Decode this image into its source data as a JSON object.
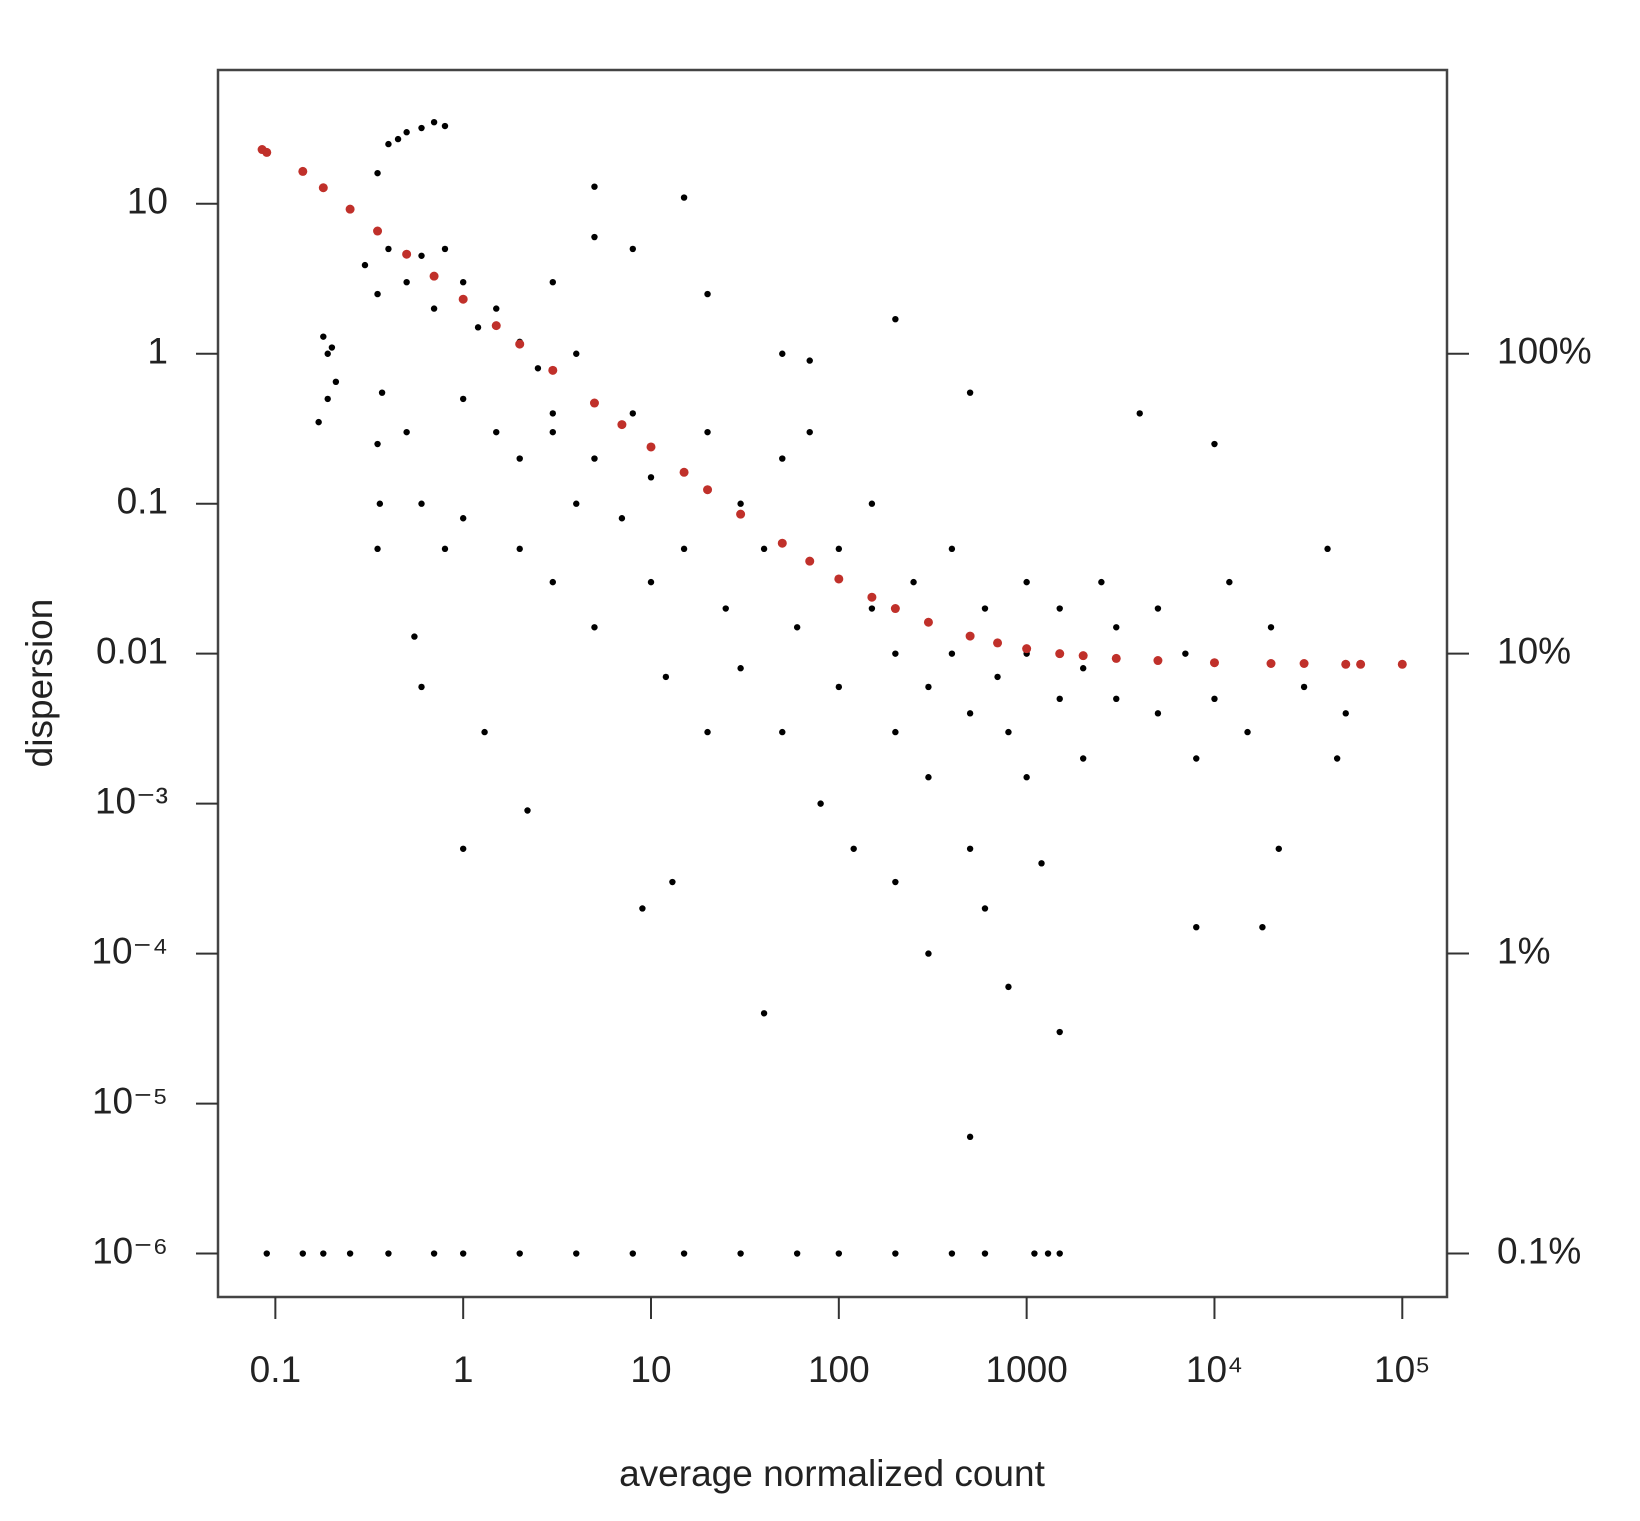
{
  "chart_data": {
    "type": "scatter",
    "xlabel": "average normalized count",
    "ylabel": "dispersion",
    "xlog": true,
    "ylog": true,
    "y2log": true,
    "xlim": [
      0.0495,
      173000
    ],
    "ylim": [
      5.13e-07,
      78
    ],
    "y2lim": [
      0.0716,
      883
    ],
    "xticks": [
      0.1,
      1,
      10,
      100,
      1000,
      {
        "value": 10000,
        "label": "10⁴"
      },
      {
        "value": 100000,
        "label": "10⁵"
      }
    ],
    "yticks": [
      {
        "value": 1e-06,
        "label": "10⁻⁶"
      },
      {
        "value": 1e-05,
        "label": "10⁻⁵"
      },
      {
        "value": 0.0001,
        "label": "10⁻⁴"
      },
      {
        "value": 0.001,
        "label": "10⁻³"
      },
      0.01,
      0.1,
      1,
      10
    ],
    "y2ticks": [
      {
        "value": 0.1,
        "label": "0.1%"
      },
      {
        "value": 1,
        "label": "1%"
      },
      {
        "value": 10,
        "label": "10%"
      },
      {
        "value": 100,
        "label": "100%"
      }
    ],
    "series": [
      {
        "color": "#000000",
        "x": [
          0.4,
          0.45,
          0.5,
          0.6,
          0.7,
          0.8,
          0.35,
          0.18,
          0.19,
          0.17,
          0.19,
          0.2,
          0.21,
          0.35,
          0.36,
          0.35,
          0.37,
          0.3,
          0.35,
          0.4,
          0.5,
          0.6,
          0.7,
          0.8,
          1,
          1.2,
          1.5,
          2,
          2.5,
          3,
          5,
          5,
          8,
          15,
          20,
          50,
          200,
          70,
          500,
          0.5,
          0.6,
          0.8,
          1,
          1,
          1.5,
          2,
          2,
          3,
          3,
          4,
          5,
          5,
          7,
          8,
          10,
          10,
          12,
          15,
          20,
          20,
          25,
          30,
          30,
          40,
          50,
          50,
          60,
          70,
          80,
          100,
          100,
          120,
          150,
          150,
          200,
          200,
          200,
          250,
          300,
          300,
          300,
          400,
          400,
          500,
          500,
          600,
          600,
          700,
          800,
          800,
          1000,
          1000,
          1000,
          1200,
          1500,
          1500,
          1500,
          2000,
          2000,
          2500,
          3000,
          3000,
          4000,
          5000,
          5000,
          7000,
          8000,
          10000,
          10000,
          12000,
          15000,
          20000,
          22000,
          30000,
          40000,
          45000,
          50000,
          18000,
          8000,
          500,
          40,
          1,
          0.6,
          0.55,
          1.3,
          2.2,
          9,
          13,
          3,
          4,
          0.09,
          0.14,
          0.18,
          0.25,
          0.4,
          0.7,
          1,
          2,
          4,
          8,
          15,
          30,
          60,
          100,
          200,
          400,
          600,
          1100,
          1300,
          1500
        ],
        "values": [
          25,
          27,
          30,
          32,
          35,
          33,
          16,
          1.3,
          1.0,
          0.35,
          0.5,
          1.1,
          0.65,
          0.25,
          0.1,
          0.05,
          0.55,
          3.9,
          2.5,
          5,
          3,
          4.5,
          2,
          5,
          3,
          1.5,
          2,
          1.2,
          0.8,
          3,
          13,
          6,
          5,
          11,
          2.5,
          1,
          1.7,
          0.9,
          0.55,
          0.3,
          0.1,
          0.05,
          0.5,
          0.08,
          0.3,
          0.05,
          0.2,
          0.4,
          0.03,
          0.1,
          0.2,
          0.015,
          0.08,
          0.4,
          0.03,
          0.15,
          0.007,
          0.05,
          0.3,
          0.003,
          0.02,
          0.1,
          0.008,
          0.05,
          0.003,
          0.2,
          0.015,
          0.3,
          0.001,
          0.05,
          0.006,
          0.0005,
          0.02,
          0.1,
          0.003,
          0.01,
          0.0003,
          0.03,
          0.006,
          0.0015,
          0.0001,
          0.01,
          0.05,
          0.004,
          0.0005,
          0.02,
          0.0002,
          0.007,
          0.003,
          6e-05,
          0.01,
          0.03,
          0.0015,
          0.0004,
          0.005,
          0.02,
          3e-05,
          0.008,
          0.002,
          0.03,
          0.005,
          0.015,
          0.4,
          0.004,
          0.02,
          0.01,
          0.002,
          0.25,
          0.005,
          0.03,
          0.003,
          0.015,
          0.0005,
          0.006,
          0.05,
          0.002,
          0.004,
          0.00015,
          0.00015,
          6e-06,
          4e-05,
          0.0005,
          0.006,
          0.013,
          0.003,
          0.0009,
          0.0002,
          0.0003,
          0.3,
          1,
          1e-06,
          1e-06,
          1e-06,
          1e-06,
          1e-06,
          1e-06,
          1e-06,
          1e-06,
          1e-06,
          1e-06,
          1e-06,
          1e-06,
          1e-06,
          1e-06,
          1e-06,
          1e-06,
          1e-06,
          1e-06,
          1e-06,
          1e-06
        ]
      },
      {
        "color": "#c0302a",
        "x": [
          0.085,
          0.09,
          0.14,
          0.18,
          0.25,
          0.35,
          0.5,
          0.7,
          1,
          1.5,
          2,
          3,
          5,
          7,
          10,
          15,
          20,
          30,
          50,
          70,
          100,
          150,
          200,
          300,
          500,
          700,
          1000,
          1500,
          2000,
          3000,
          5000,
          10000,
          20000,
          30000,
          50000,
          60000,
          100000
        ],
        "values": [
          23,
          22,
          16.44,
          12.79,
          9.21,
          6.58,
          4.61,
          3.29,
          2.31,
          1.54,
          1.16,
          0.775,
          0.469,
          0.337,
          0.239,
          0.162,
          0.124,
          0.0852,
          0.0545,
          0.0414,
          0.0315,
          0.0238,
          0.02,
          0.0162,
          0.0131,
          0.0118,
          0.0108,
          0.01,
          0.0097,
          0.0093,
          0.009,
          0.0087,
          0.0086,
          0.0086,
          0.0085,
          0.0085,
          0.0085
        ]
      }
    ]
  }
}
